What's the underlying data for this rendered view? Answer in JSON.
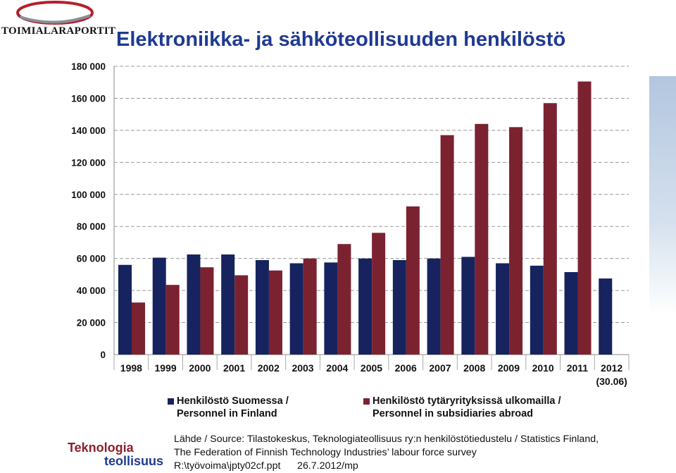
{
  "brand": {
    "top_logo_text": "TOIMIALARAPORTIT",
    "bottom_logo_line1": "Teknologia",
    "bottom_logo_line2": "teollisuus"
  },
  "colors": {
    "finland": "#16235e",
    "abroad": "#7b2230",
    "title": "#1f3a93",
    "grid": "#999999"
  },
  "chart_data": {
    "type": "bar",
    "title": "Elektroniikka- ja sähköteollisuuden henkilöstö",
    "categories": [
      "1998",
      "1999",
      "2000",
      "2001",
      "2002",
      "2003",
      "2004",
      "2005",
      "2006",
      "2007",
      "2008",
      "2009",
      "2010",
      "2011",
      "2012"
    ],
    "category_sublabels": {
      "2012": "(30.06)"
    },
    "series": [
      {
        "name": "Henkilöstö Suomessa / Personnel in Finland",
        "values": [
          56000,
          60500,
          62500,
          62500,
          59000,
          57000,
          57500,
          60000,
          59000,
          60000,
          61000,
          57000,
          55500,
          51500,
          47500
        ]
      },
      {
        "name": "Henkilöstö tytäryrityksissä ulkomailla / Personnel in subsidiaries abroad",
        "values": [
          32500,
          43500,
          54500,
          49500,
          52500,
          60000,
          69000,
          76000,
          92500,
          137000,
          144000,
          142000,
          157000,
          170500,
          null
        ]
      }
    ],
    "ylim": [
      0,
      180000
    ],
    "yticks": [
      "180 000",
      "160 000",
      "140 000",
      "120 000",
      "100 000",
      "80 000",
      "60 000",
      "40 000",
      "20 000",
      "0"
    ],
    "ytick_values": [
      180000,
      160000,
      140000,
      120000,
      100000,
      80000,
      60000,
      40000,
      20000,
      0
    ],
    "grid": true,
    "legend_position": "bottom"
  },
  "legend": {
    "finland": {
      "line1": "Henkilöstö Suomessa /",
      "line2": "Personnel in Finland"
    },
    "abroad": {
      "line1": "Henkilöstö tytäryrityksissä ulkomailla /",
      "line2": "Personnel in subsidiaries abroad"
    }
  },
  "source": {
    "line1": "Lähde / Source: Tilastokeskus, Teknologiateollisuus ry:n henkilöstötiedustelu / Statistics Finland,",
    "line2": "The Federation of Finnish Technology Industries’ labour force survey",
    "line3": "R:\\työvoima\\jpty02cf.ppt      26.7.2012/mp"
  }
}
